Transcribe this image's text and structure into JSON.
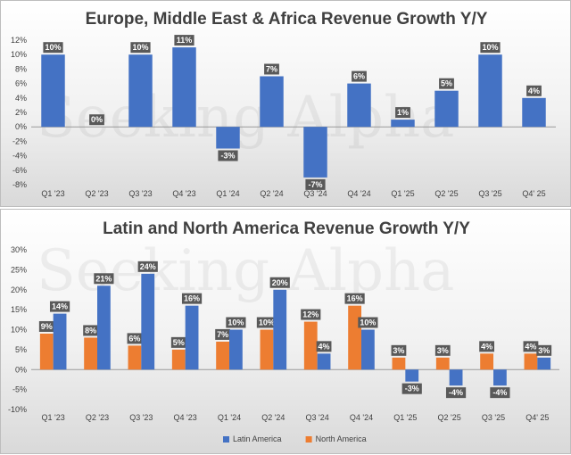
{
  "chart_data": [
    {
      "type": "bar",
      "title": "Europe, Middle East & Africa Revenue Growth Y/Y",
      "categories": [
        "Q1 '23",
        "Q2 '23",
        "Q3 '23",
        "Q4 '23",
        "Q1 '24",
        "Q2 '24",
        "Q3 '24",
        "Q4 '24",
        "Q1 '25",
        "Q2 '25",
        "Q3 '25",
        "Q4' 25"
      ],
      "series": [
        {
          "values": [
            10,
            0,
            10,
            11,
            -3,
            7,
            -7,
            6,
            1,
            5,
            10,
            4
          ],
          "labels": [
            "10%",
            "0%",
            "10%",
            "11%",
            "-3%",
            "7%",
            "-7%",
            "6%",
            "1%",
            "5%",
            "10%",
            "4%"
          ],
          "color": "#4472c4"
        }
      ],
      "ylim": [
        -8,
        12
      ],
      "yticks": [
        -8,
        -6,
        -4,
        -2,
        0,
        2,
        4,
        6,
        8,
        10,
        12
      ],
      "ytick_labels": [
        "-8%",
        "-6%",
        "-4%",
        "-2%",
        "0%",
        "2%",
        "4%",
        "6%",
        "8%",
        "10%",
        "12%"
      ],
      "grid": false,
      "legend": false
    },
    {
      "type": "bar",
      "title": "Latin and North America Revenue Growth Y/Y",
      "categories": [
        "Q1 '23",
        "Q2 '23",
        "Q3 '23",
        "Q4 '23",
        "Q1 '24",
        "Q2 '24",
        "Q3 '24",
        "Q4 '24",
        "Q1 '25",
        "Q2 '25",
        "Q3 '25",
        "Q4' 25"
      ],
      "series": [
        {
          "name": "North America",
          "values": [
            9,
            8,
            6,
            5,
            7,
            10,
            12,
            16,
            3,
            3,
            4,
            4
          ],
          "labels": [
            "9%",
            "8%",
            "6%",
            "5%",
            "7%",
            "10%",
            "12%",
            "16%",
            "3%",
            "3%",
            "4%",
            "4%"
          ],
          "color": "#ed7d31"
        },
        {
          "name": "Latin America",
          "values": [
            14,
            21,
            24,
            16,
            10,
            20,
            4,
            10,
            -3,
            -4,
            -4,
            3
          ],
          "labels": [
            "14%",
            "21%",
            "24%",
            "16%",
            "10%",
            "20%",
            "4%",
            "10%",
            "-3%",
            "-4%",
            "-4%",
            "3%"
          ],
          "color": "#4472c4"
        }
      ],
      "ylim": [
        -10,
        30
      ],
      "yticks": [
        -10,
        -5,
        0,
        5,
        10,
        15,
        20,
        25,
        30
      ],
      "ytick_labels": [
        "-10%",
        "-5%",
        "0%",
        "5%",
        "10%",
        "15%",
        "20%",
        "25%",
        "30%"
      ],
      "grid": false,
      "legend": "bottom",
      "legend_order": [
        "Latin America",
        "North America"
      ]
    }
  ],
  "watermark": "Seeking Alpha"
}
